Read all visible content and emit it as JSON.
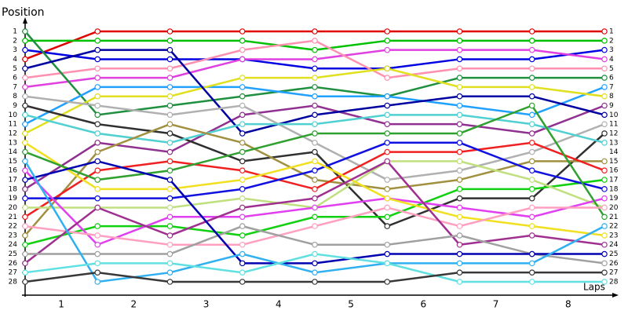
{
  "chart_data": {
    "type": "line",
    "y_axis_label": "Position",
    "x_axis_label": "Laps",
    "x": [
      0,
      1,
      2,
      3,
      4,
      5,
      6,
      7,
      8
    ],
    "xlim": [
      0,
      8
    ],
    "xticks": [
      {
        "value": 0.5,
        "label": "1"
      },
      {
        "value": 1.5,
        "label": "2"
      },
      {
        "value": 2.5,
        "label": "3"
      },
      {
        "value": 3.5,
        "label": "4"
      },
      {
        "value": 4.5,
        "label": "5"
      },
      {
        "value": 5.5,
        "label": "6"
      },
      {
        "value": 6.5,
        "label": "7"
      },
      {
        "value": 7.5,
        "label": "8"
      }
    ],
    "ylim": [
      28,
      1
    ],
    "yticks": [
      1,
      2,
      3,
      4,
      5,
      6,
      7,
      8,
      9,
      10,
      11,
      12,
      13,
      14,
      15,
      16,
      17,
      18,
      19,
      20,
      21,
      22,
      23,
      24,
      25,
      26,
      27,
      28
    ],
    "series": [
      {
        "color": "#e00000",
        "values": [
          4,
          1,
          1,
          1,
          1,
          1,
          1,
          1,
          1
        ]
      },
      {
        "color": "#00c000",
        "values": [
          2,
          2,
          2,
          2,
          3,
          2,
          2,
          2,
          2
        ]
      },
      {
        "color": "#0000e0",
        "values": [
          3,
          4,
          4,
          4,
          5,
          5,
          4,
          4,
          3
        ]
      },
      {
        "color": "#e040e0",
        "values": [
          7,
          6,
          6,
          4,
          4,
          3,
          3,
          3,
          4
        ]
      },
      {
        "color": "#ff90b0",
        "values": [
          6,
          5,
          5,
          3,
          2,
          6,
          5,
          5,
          5
        ]
      },
      {
        "color": "#209040",
        "values": [
          1,
          10,
          9,
          8,
          7,
          8,
          6,
          6,
          6
        ]
      },
      {
        "color": "#20a0ff",
        "values": [
          11,
          7,
          7,
          7,
          8,
          8,
          9,
          10,
          7
        ]
      },
      {
        "color": "#e0e020",
        "values": [
          12,
          8,
          8,
          6,
          6,
          5,
          7,
          7,
          8
        ]
      },
      {
        "color": "#903090",
        "values": [
          18,
          13,
          14,
          10,
          9,
          11,
          11,
          12,
          9
        ]
      },
      {
        "color": "#0000a0",
        "values": [
          5,
          3,
          3,
          12,
          10,
          9,
          8,
          8,
          10
        ]
      },
      {
        "color": "#b0b0b0",
        "values": [
          8,
          9,
          10,
          9,
          13,
          17,
          16,
          14,
          11
        ]
      },
      {
        "color": "#303030",
        "values": [
          9,
          11,
          12,
          15,
          14,
          22,
          19,
          19,
          12
        ]
      },
      {
        "color": "#50d0d0",
        "values": [
          10,
          12,
          13,
          11,
          11,
          10,
          10,
          11,
          13
        ]
      },
      {
        "color": "#a09040",
        "values": [
          23,
          14,
          11,
          13,
          17,
          18,
          17,
          15,
          15
        ]
      },
      {
        "color": "#f02020",
        "values": [
          21,
          16,
          15,
          16,
          18,
          14,
          14,
          13,
          16
        ]
      },
      {
        "color": "#10d010",
        "values": [
          24,
          22,
          22,
          23,
          21,
          21,
          18,
          18,
          17
        ]
      },
      {
        "color": "#1010e0",
        "values": [
          19,
          19,
          19,
          18,
          16,
          13,
          13,
          16,
          18
        ]
      },
      {
        "color": "#c0e080",
        "values": [
          20,
          20,
          20,
          19,
          20,
          15,
          15,
          17,
          20
        ]
      },
      {
        "color": "#e040f0",
        "values": [
          16,
          24,
          21,
          21,
          20,
          19,
          20,
          21,
          19
        ]
      },
      {
        "color": "#f0e020",
        "values": [
          13,
          18,
          18,
          17,
          15,
          19,
          21,
          22,
          23
        ]
      },
      {
        "color": "#30a030",
        "values": [
          14,
          17,
          16,
          14,
          12,
          12,
          12,
          9,
          21
        ]
      },
      {
        "color": "#ffa0c0",
        "values": [
          22,
          23,
          24,
          24,
          22,
          20,
          22,
          20,
          20
        ]
      },
      {
        "color": "#a03090",
        "values": [
          26,
          20,
          23,
          20,
          19,
          15,
          24,
          23,
          24
        ]
      },
      {
        "color": "#a0a0a0",
        "values": [
          25,
          25,
          25,
          22,
          24,
          24,
          23,
          25,
          26
        ]
      },
      {
        "color": "#0000b0",
        "values": [
          17,
          15,
          17,
          26,
          26,
          25,
          25,
          25,
          25
        ]
      },
      {
        "color": "#30b0f0",
        "values": [
          15,
          28,
          27,
          25,
          27,
          26,
          26,
          26,
          22
        ]
      },
      {
        "color": "#60e0e0",
        "values": [
          27,
          26,
          26,
          27,
          25,
          26,
          28,
          28,
          28
        ]
      },
      {
        "color": "#383838",
        "values": [
          28,
          27,
          28,
          28,
          28,
          28,
          27,
          27,
          27
        ]
      }
    ]
  }
}
